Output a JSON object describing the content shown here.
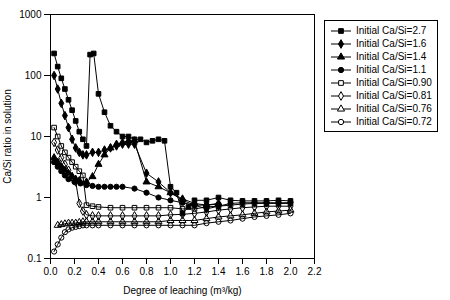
{
  "chart_data": {
    "type": "line",
    "xlabel": "Degree of leaching (m³/kg)",
    "ylabel": "Ca/Si ratio in solution",
    "log": "y",
    "grid": false,
    "legend": "right",
    "xlim": [
      0.0,
      2.2
    ],
    "ylim": [
      0.1,
      1000
    ],
    "xticks": [
      {
        "value": 0.0,
        "label": "0.0"
      },
      0.2,
      0.4,
      0.6,
      0.8,
      {
        "value": 1.0,
        "label": "1.0"
      },
      1.2,
      1.4,
      1.6,
      1.8,
      {
        "value": 2.0,
        "label": "2.0"
      },
      2.2
    ],
    "yticks": [
      0.1,
      1,
      10,
      100,
      1000
    ],
    "series": [
      {
        "name": "Initial Ca/Si=2.7",
        "color": "#000000",
        "marker": "filled-square",
        "x": [
          0.03,
          0.06,
          0.09,
          0.12,
          0.15,
          0.18,
          0.21,
          0.24,
          0.27,
          0.3,
          0.33,
          0.36,
          0.4,
          0.45,
          0.5,
          0.55,
          0.6,
          0.65,
          0.7,
          0.75,
          0.8,
          0.85,
          0.9,
          0.95,
          1.0,
          1.05,
          1.1,
          1.15,
          1.2,
          1.3,
          1.4,
          1.5,
          1.6,
          1.7,
          1.8,
          1.9,
          2.0
        ],
        "values": [
          230,
          140,
          90,
          60,
          40,
          27,
          18,
          12,
          9,
          7,
          220,
          230,
          50,
          25,
          15,
          12,
          10,
          10,
          9,
          9,
          8,
          8.5,
          9,
          8.5,
          1.5,
          1.2,
          0.55,
          0.7,
          0.9,
          0.9,
          1.0,
          0.9,
          0.88,
          0.88,
          0.88,
          0.9,
          0.88
        ]
      },
      {
        "name": "Initial Ca/Si=1.6",
        "color": "#000000",
        "marker": "filled-diamond",
        "x": [
          0.03,
          0.06,
          0.09,
          0.12,
          0.15,
          0.18,
          0.21,
          0.24,
          0.27,
          0.3,
          0.35,
          0.4,
          0.45,
          0.5,
          0.55,
          0.6,
          0.65,
          0.7,
          0.8,
          0.9,
          1.0,
          1.1,
          1.2,
          1.3,
          1.4,
          1.5,
          1.6,
          1.7,
          1.8,
          1.9,
          2.0
        ],
        "values": [
          100,
          60,
          35,
          22,
          14,
          9,
          6.5,
          5.5,
          5.0,
          5.0,
          5.5,
          5.5,
          6.0,
          6.5,
          7.0,
          7.5,
          7.5,
          7.5,
          2.5,
          1.8,
          1.2,
          0.9,
          0.75,
          0.65,
          0.72,
          0.8,
          0.82,
          0.82,
          0.82,
          0.82,
          0.82
        ]
      },
      {
        "name": "Initial Ca/Si=1.4",
        "color": "#000000",
        "marker": "filled-triangle",
        "x": [
          0.03,
          0.06,
          0.09,
          0.12,
          0.15,
          0.18,
          0.21,
          0.24,
          0.3,
          0.35,
          0.4,
          0.45,
          0.5,
          0.55,
          0.6,
          0.65,
          0.7,
          0.8,
          0.9,
          1.0,
          1.1,
          1.2,
          1.3,
          1.4
        ],
        "values": [
          4.5,
          3.8,
          3.2,
          2.8,
          2.5,
          2.2,
          2.0,
          1.9,
          1.8,
          2.2,
          3.5,
          5.0,
          6.5,
          7.5,
          8.0,
          8.5,
          8.5,
          1.8,
          1.5,
          1.2,
          0.95,
          0.8,
          0.75,
          0.8
        ]
      },
      {
        "name": "Initial Ca/Si=1.1",
        "color": "#000000",
        "marker": "filled-circle",
        "x": [
          0.03,
          0.06,
          0.09,
          0.12,
          0.15,
          0.2,
          0.25,
          0.3,
          0.35,
          0.4,
          0.45,
          0.5,
          0.55,
          0.6,
          0.7,
          0.8,
          0.9,
          1.0,
          1.1,
          1.2,
          1.3,
          1.4
        ],
        "values": [
          3.8,
          3.2,
          2.7,
          2.3,
          2.0,
          1.8,
          1.7,
          1.6,
          1.55,
          1.5,
          1.5,
          1.5,
          1.5,
          1.5,
          1.4,
          1.2,
          1.0,
          0.9,
          0.82,
          0.75,
          0.75,
          0.78
        ]
      },
      {
        "name": "Initial Ca/Si=0.90",
        "color": "#000000",
        "marker": "open-square",
        "x": [
          0.03,
          0.06,
          0.09,
          0.12,
          0.15,
          0.18,
          0.21,
          0.24,
          0.27,
          0.3,
          0.35,
          0.4,
          0.5,
          0.6,
          0.7,
          0.8,
          0.9,
          1.0,
          1.1,
          1.2,
          1.3,
          1.4,
          1.5,
          1.6,
          1.7,
          1.8,
          1.9,
          2.0
        ],
        "values": [
          14,
          10,
          7,
          5.5,
          4.5,
          3.8,
          3.2,
          2.7,
          2.3,
          0.75,
          0.72,
          0.7,
          0.68,
          0.68,
          0.68,
          0.68,
          0.68,
          0.68,
          0.65,
          0.65,
          0.7,
          0.72,
          0.75,
          0.78,
          0.8,
          0.8,
          0.8,
          0.8
        ]
      },
      {
        "name": "Initial Ca/Si=0.81",
        "color": "#000000",
        "marker": "open-diamond",
        "x": [
          0.03,
          0.06,
          0.09,
          0.12,
          0.15,
          0.18,
          0.21,
          0.24,
          0.27,
          0.3,
          0.35,
          0.4,
          0.5,
          0.6,
          0.7,
          0.8,
          0.9,
          1.0,
          1.1,
          1.2,
          1.3,
          1.4,
          1.5,
          1.6,
          1.7,
          1.8,
          1.9,
          2.0
        ],
        "values": [
          8.0,
          6.0,
          4.5,
          3.5,
          2.8,
          2.2,
          1.8,
          0.8,
          0.6,
          0.52,
          0.5,
          0.5,
          0.5,
          0.5,
          0.5,
          0.5,
          0.5,
          0.52,
          0.53,
          0.55,
          0.58,
          0.62,
          0.65,
          0.68,
          0.7,
          0.72,
          0.72,
          0.72
        ]
      },
      {
        "name": "Initial Ca/Si=0.76",
        "color": "#000000",
        "marker": "open-triangle",
        "x": [
          0.06,
          0.09,
          0.12,
          0.15,
          0.18,
          0.21,
          0.24,
          0.27,
          0.3,
          0.35,
          0.4,
          0.5,
          0.6,
          0.7,
          0.8,
          0.9,
          1.0,
          1.1,
          1.2,
          1.3,
          1.4,
          1.5,
          1.6,
          1.7,
          1.8,
          1.9,
          2.0
        ],
        "values": [
          0.35,
          0.36,
          0.37,
          0.38,
          0.38,
          0.38,
          0.39,
          0.4,
          0.4,
          0.4,
          0.4,
          0.4,
          0.4,
          0.4,
          0.4,
          0.4,
          0.42,
          0.42,
          0.42,
          0.45,
          0.48,
          0.5,
          0.52,
          0.55,
          0.58,
          0.6,
          0.62
        ]
      },
      {
        "name": "Initial Ca/Si=0.72",
        "color": "#000000",
        "marker": "open-circle",
        "x": [
          0.03,
          0.06,
          0.09,
          0.12,
          0.15,
          0.18,
          0.21,
          0.24,
          0.27,
          0.3,
          0.35,
          0.4,
          0.5,
          0.6,
          0.7,
          0.8,
          0.9,
          1.0,
          1.1,
          1.2,
          1.3,
          1.4,
          1.5,
          1.6,
          1.7,
          1.8,
          1.9,
          2.0
        ],
        "values": [
          0.13,
          0.17,
          0.22,
          0.27,
          0.3,
          0.32,
          0.33,
          0.34,
          0.35,
          0.35,
          0.35,
          0.35,
          0.35,
          0.35,
          0.35,
          0.35,
          0.35,
          0.35,
          0.35,
          0.35,
          0.38,
          0.4,
          0.42,
          0.45,
          0.48,
          0.5,
          0.52,
          0.55
        ]
      }
    ]
  }
}
